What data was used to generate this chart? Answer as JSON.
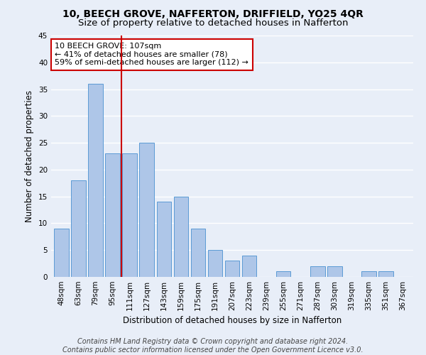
{
  "title": "10, BEECH GROVE, NAFFERTON, DRIFFIELD, YO25 4QR",
  "subtitle": "Size of property relative to detached houses in Nafferton",
  "xlabel": "Distribution of detached houses by size in Nafferton",
  "ylabel": "Number of detached properties",
  "categories": [
    "48sqm",
    "63sqm",
    "79sqm",
    "95sqm",
    "111sqm",
    "127sqm",
    "143sqm",
    "159sqm",
    "175sqm",
    "191sqm",
    "207sqm",
    "223sqm",
    "239sqm",
    "255sqm",
    "271sqm",
    "287sqm",
    "303sqm",
    "319sqm",
    "335sqm",
    "351sqm",
    "367sqm"
  ],
  "values": [
    9,
    18,
    36,
    23,
    23,
    25,
    14,
    15,
    9,
    5,
    3,
    4,
    0,
    1,
    0,
    2,
    2,
    0,
    1,
    1,
    0
  ],
  "bar_color": "#aec6e8",
  "bar_edge_color": "#5b9bd5",
  "marker_line_index": 4,
  "annotation_title": "10 BEECH GROVE: 107sqm",
  "annotation_line1": "← 41% of detached houses are smaller (78)",
  "annotation_line2": "59% of semi-detached houses are larger (112) →",
  "ylim": [
    0,
    45
  ],
  "yticks": [
    0,
    5,
    10,
    15,
    20,
    25,
    30,
    35,
    40,
    45
  ],
  "footer_line1": "Contains HM Land Registry data © Crown copyright and database right 2024.",
  "footer_line2": "Contains public sector information licensed under the Open Government Licence v3.0.",
  "background_color": "#e8eef8",
  "plot_background": "#e8eef8",
  "grid_color": "#ffffff",
  "annotation_box_color": "#ffffff",
  "annotation_box_edge": "#cc0000",
  "red_line_color": "#cc0000",
  "title_fontsize": 10,
  "subtitle_fontsize": 9.5,
  "axis_label_fontsize": 8.5,
  "tick_fontsize": 7.5,
  "annotation_fontsize": 8,
  "footer_fontsize": 7
}
